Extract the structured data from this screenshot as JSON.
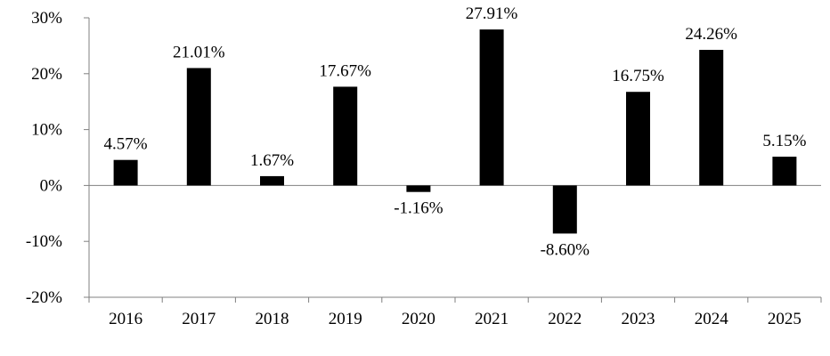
{
  "chart_data": {
    "type": "bar",
    "categories": [
      "2016",
      "2017",
      "2018",
      "2019",
      "2020",
      "2021",
      "2022",
      "2023",
      "2024",
      "2025"
    ],
    "values": [
      4.57,
      21.01,
      1.67,
      17.67,
      -1.16,
      27.91,
      -8.6,
      16.75,
      24.26,
      5.15
    ],
    "data_labels": [
      "4.57%",
      "21.01%",
      "1.67%",
      "17.67%",
      "-1.16%",
      "27.91%",
      "-8.60%",
      "16.75%",
      "24.26%",
      "5.15%"
    ],
    "y_ticks": [
      30,
      20,
      10,
      0,
      -10,
      -20
    ],
    "y_tick_labels": [
      "30%",
      "20%",
      "10%",
      "0%",
      "-10%",
      "-20%"
    ],
    "ylim": [
      -20,
      30
    ],
    "title": "",
    "xlabel": "",
    "ylabel": "",
    "grid": false,
    "legend": "none",
    "colors": {
      "bar": "#000000",
      "axis": "#808080"
    }
  }
}
